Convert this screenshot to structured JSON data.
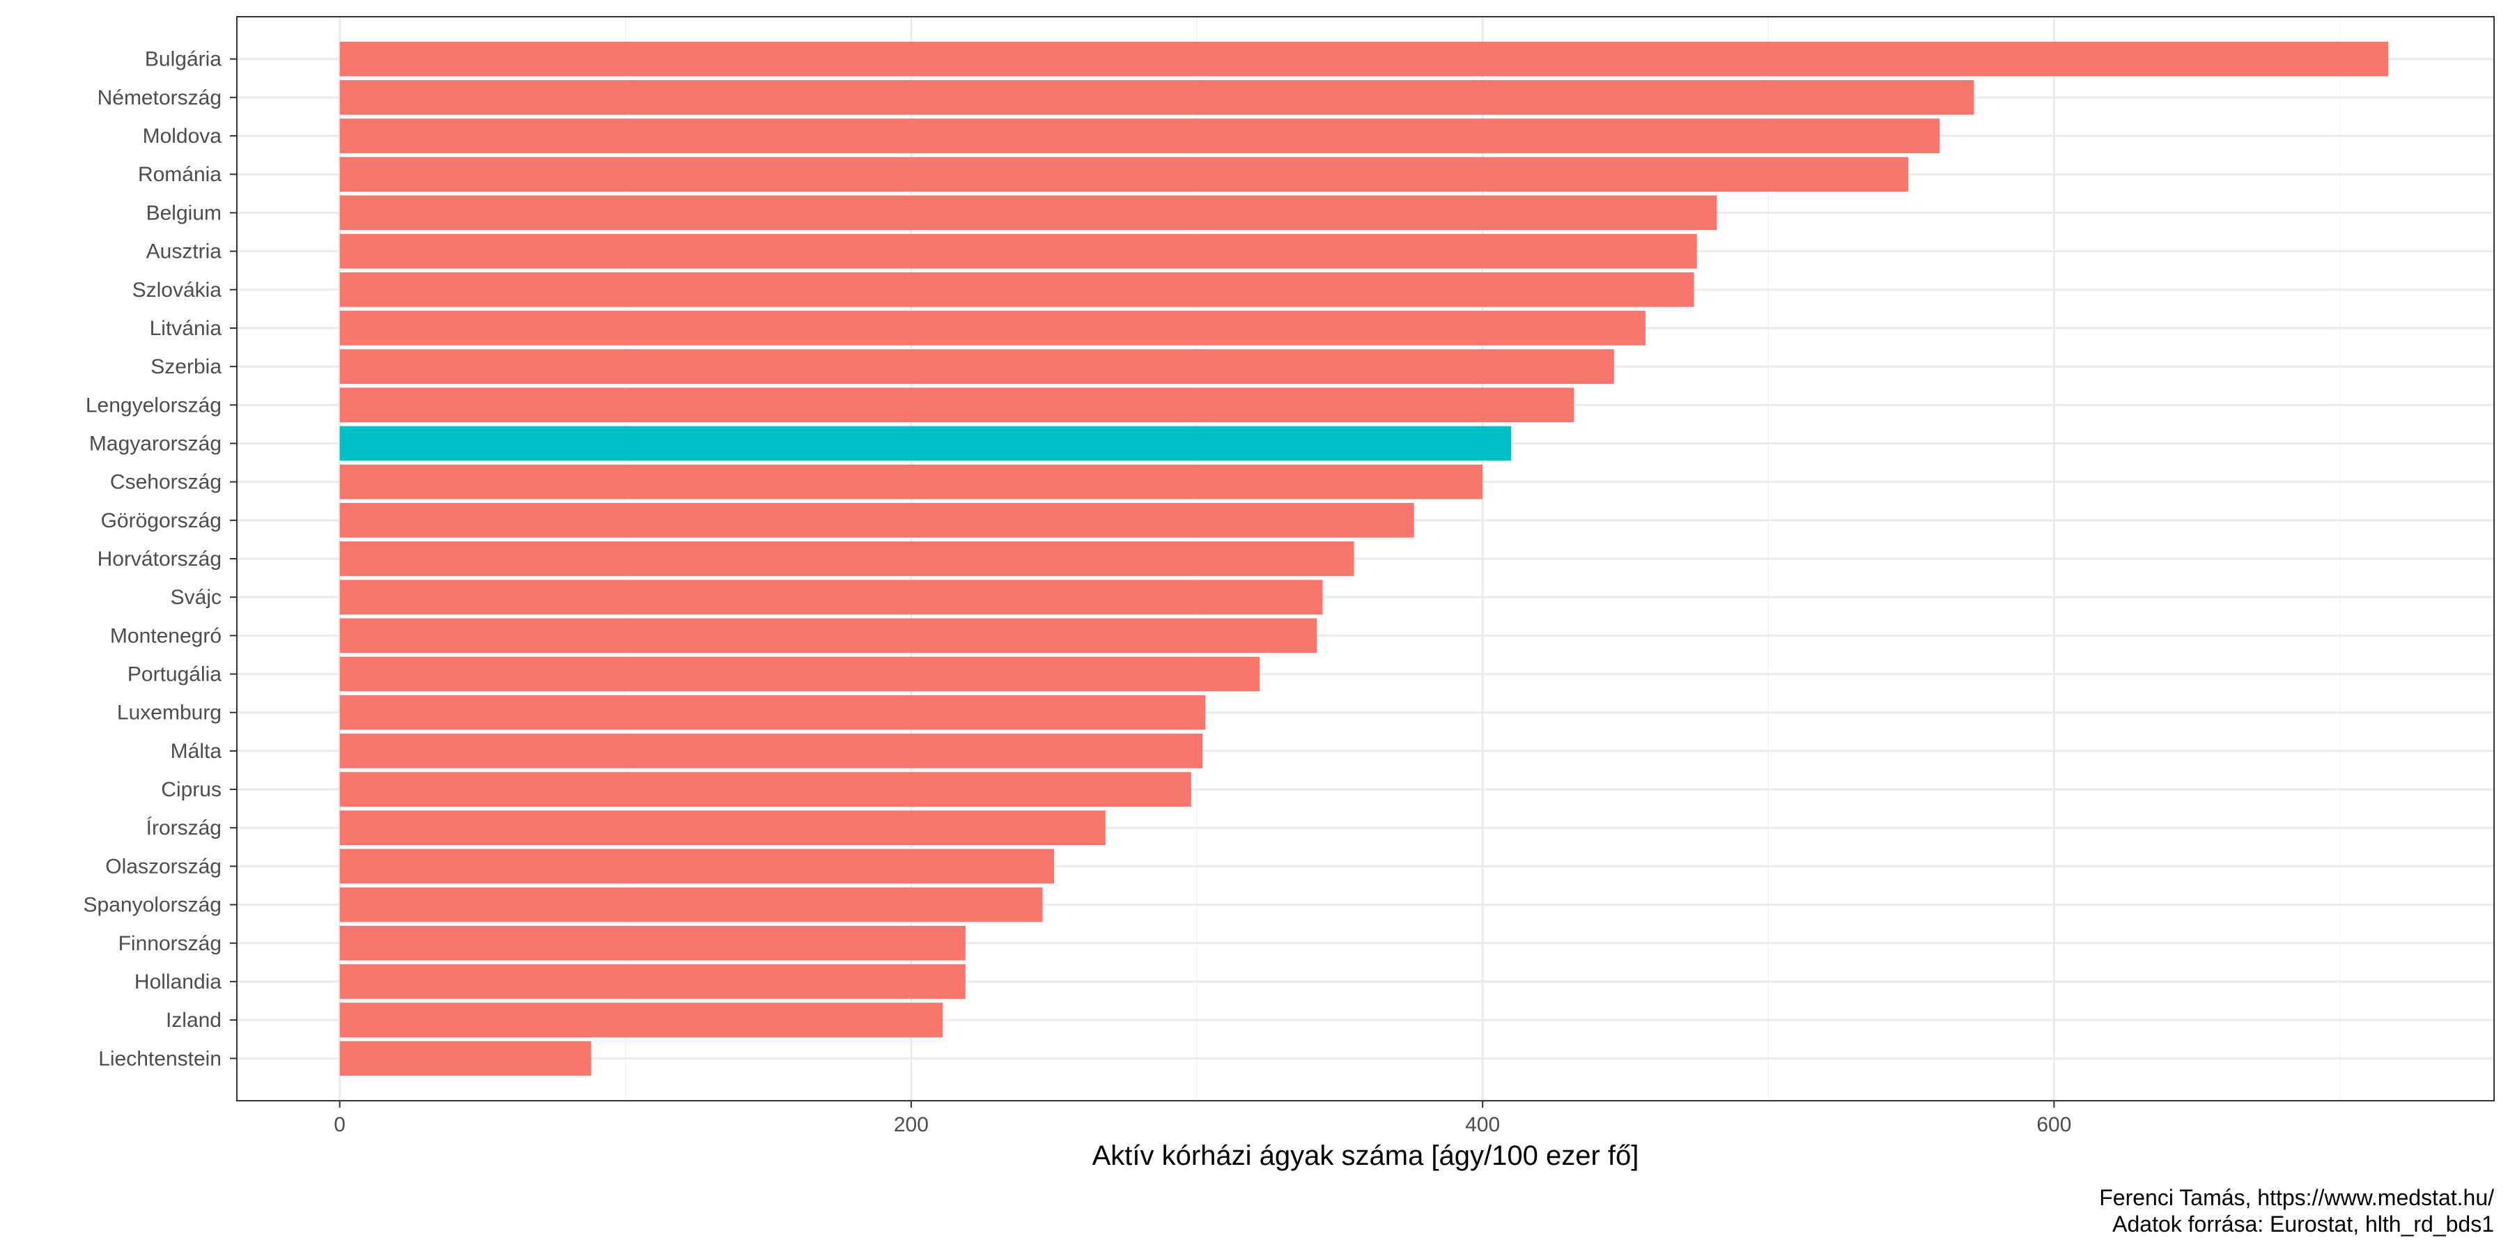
{
  "chart_data": {
    "type": "bar",
    "orientation": "horizontal",
    "categories": [
      "Bulgária",
      "Németország",
      "Moldova",
      "Románia",
      "Belgium",
      "Ausztria",
      "Szlovákia",
      "Litvánia",
      "Szerbia",
      "Lengyelország",
      "Magyarország",
      "Csehország",
      "Görögország",
      "Horvátország",
      "Svájc",
      "Montenegró",
      "Portugália",
      "Luxemburg",
      "Málta",
      "Ciprus",
      "Írország",
      "Olaszország",
      "Spanyolország",
      "Finnország",
      "Hollandia",
      "Izland",
      "Liechtenstein"
    ],
    "values": [
      717,
      572,
      560,
      549,
      482,
      475,
      474,
      457,
      446,
      432,
      410,
      400,
      376,
      355,
      344,
      342,
      322,
      303,
      302,
      298,
      268,
      250,
      246,
      219,
      219,
      211,
      88
    ],
    "highlight_category": "Magyarország",
    "colors": {
      "default": "#F8766D",
      "highlight": "#00BFC4",
      "grid_major": "#EBEBEB",
      "grid_minor": "#F5F5F5",
      "panel_border": "#333333",
      "tick": "#333333"
    },
    "title": "",
    "xlabel": "Aktív kórházi ágyak száma [ágy/100 ezer fő]",
    "ylabel": "",
    "xlim": [
      -36,
      754
    ],
    "x_ticks": [
      0,
      200,
      400,
      600
    ],
    "x_minor_ticks": [
      100,
      300,
      500,
      700
    ],
    "grid": true,
    "legend": "none"
  },
  "caption": {
    "line1": "Ferenci Tamás, https://www.medstat.hu/",
    "line2": "Adatok forrása: Eurostat, hlth_rd_bds1"
  }
}
